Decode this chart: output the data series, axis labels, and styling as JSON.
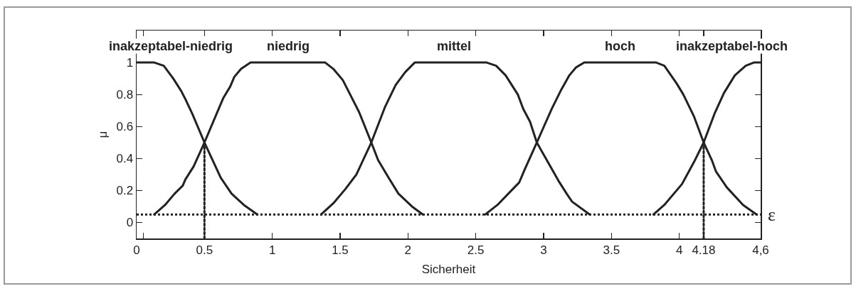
{
  "chart_data": {
    "type": "line",
    "xlabel": "Sicherheit",
    "ylabel": "μ",
    "xlim": [
      0,
      4.6
    ],
    "ylim": [
      -0.1,
      1.2
    ],
    "xticks": [
      0,
      {
        "value": 0.05,
        "label": null
      },
      0.5,
      1,
      1.5,
      2,
      2.5,
      3,
      3.5,
      4,
      4.18,
      {
        "value": 4.6,
        "label": "4,6"
      }
    ],
    "yticks": [
      0,
      0.2,
      0.4,
      0.6,
      0.8,
      1
    ],
    "grid": false,
    "legend": "top",
    "marker": "none",
    "line_style": "solid",
    "series": [
      {
        "name": "inakzeptabel-niedrig",
        "color": "#222222",
        "x": [
          0,
          0.06,
          0.13,
          0.2,
          0.27,
          0.33,
          0.36,
          0.41,
          0.5,
          0.56,
          0.62,
          0.7,
          0.79,
          0.89
        ],
        "values": [
          1,
          1,
          1,
          0.98,
          0.9,
          0.82,
          0.77,
          0.68,
          0.5,
          0.39,
          0.28,
          0.18,
          0.11,
          0.05
        ]
      },
      {
        "name": "niedrig",
        "color": "#222222",
        "x": [
          0.13,
          0.21,
          0.28,
          0.34,
          0.36,
          0.42,
          0.5,
          0.59,
          0.64,
          0.69,
          0.72,
          0.77,
          0.84,
          1.39,
          1.45,
          1.52,
          1.58,
          1.64,
          1.73,
          1.78,
          1.85,
          1.93,
          2.03,
          2.11
        ],
        "values": [
          0.05,
          0.11,
          0.18,
          0.23,
          0.27,
          0.35,
          0.5,
          0.68,
          0.78,
          0.85,
          0.91,
          0.96,
          1,
          1,
          0.96,
          0.89,
          0.79,
          0.69,
          0.5,
          0.39,
          0.29,
          0.18,
          0.1,
          0.05
        ]
      },
      {
        "name": "mittel",
        "color": "#222222",
        "x": [
          1.36,
          1.45,
          1.54,
          1.62,
          1.73,
          1.83,
          1.91,
          1.98,
          2.05,
          2.58,
          2.65,
          2.72,
          2.81,
          2.85,
          2.9,
          2.95,
          3.03,
          3.11,
          3.17,
          3.21,
          3.34
        ],
        "values": [
          0.05,
          0.12,
          0.21,
          0.3,
          0.5,
          0.72,
          0.86,
          0.94,
          1,
          1,
          0.98,
          0.92,
          0.8,
          0.71,
          0.63,
          0.5,
          0.38,
          0.26,
          0.18,
          0.13,
          0.05
        ]
      },
      {
        "name": "hoch",
        "color": "#222222",
        "x": [
          2.57,
          2.66,
          2.74,
          2.82,
          2.86,
          2.95,
          3.06,
          3.13,
          3.19,
          3.24,
          3.3,
          3.83,
          3.89,
          3.98,
          4.03,
          4.11,
          4.18,
          4.24,
          4.27,
          4.35,
          4.47,
          4.57
        ],
        "values": [
          0.05,
          0.11,
          0.18,
          0.25,
          0.33,
          0.5,
          0.71,
          0.83,
          0.92,
          0.97,
          1,
          1,
          0.98,
          0.87,
          0.8,
          0.66,
          0.5,
          0.39,
          0.32,
          0.22,
          0.11,
          0.05
        ]
      },
      {
        "name": "inakzeptabel-hoch",
        "color": "#222222",
        "x": [
          3.81,
          3.89,
          4.02,
          4.11,
          4.18,
          4.26,
          4.33,
          4.41,
          4.49,
          4.55,
          4.6
        ],
        "values": [
          0.05,
          0.11,
          0.24,
          0.38,
          0.5,
          0.68,
          0.81,
          0.92,
          0.98,
          1,
          1
        ]
      },
      {
        "color": "#222222",
        "line_style": "dotted",
        "x": [
          0.5,
          0.5
        ],
        "values": [
          -0.1,
          0.5
        ]
      },
      {
        "color": "#222222",
        "line_style": "dotted",
        "x": [
          4.18,
          4.18
        ],
        "values": [
          -0.1,
          0.5
        ]
      }
    ],
    "ref_lines": [
      {
        "axis": "y",
        "value": 0.05,
        "label": "ε",
        "color": "#222222",
        "line_style": "dotted"
      }
    ]
  }
}
